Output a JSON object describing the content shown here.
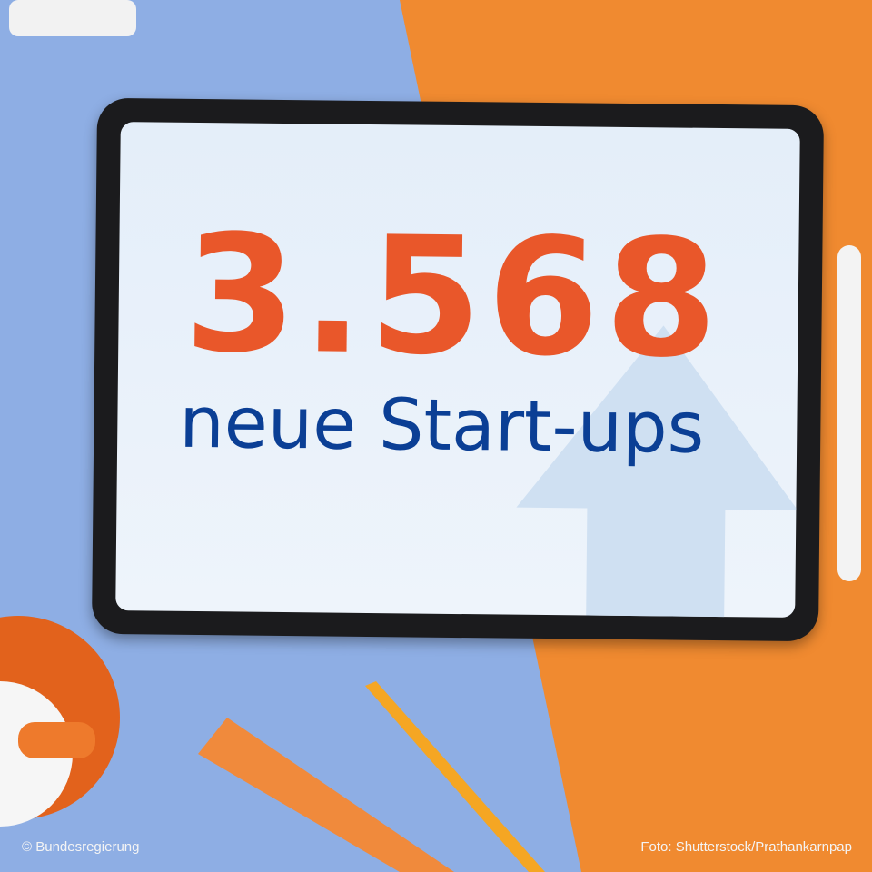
{
  "headline": {
    "number": "3.568",
    "caption": "neue Start-ups"
  },
  "credits": {
    "left": "© Bundesregierung",
    "right": "Foto: Shutterstock/Prathankarnpap"
  },
  "colors": {
    "number": "#e9572a",
    "caption": "#0b3f95",
    "background_left": "#8eaee4",
    "background_right": "#f08a30"
  }
}
